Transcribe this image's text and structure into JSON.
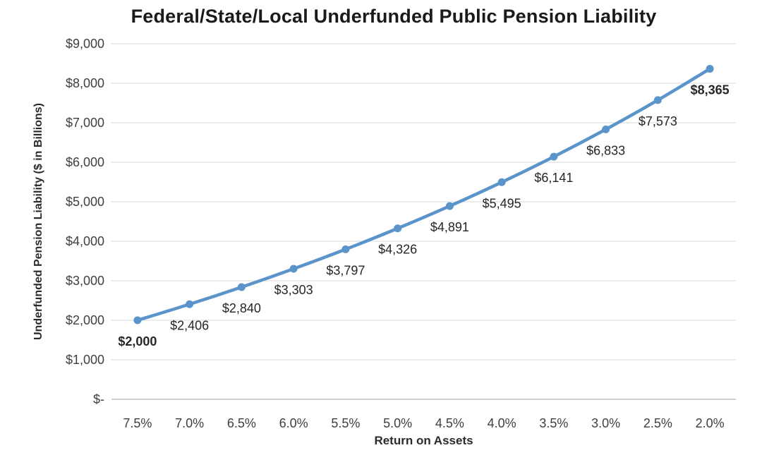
{
  "chart_data": {
    "type": "line",
    "title": "Federal/State/Local Underfunded Public Pension Liability",
    "xlabel": "Return on Assets",
    "ylabel": "Underfunded Pension Liability ($ in Billions)",
    "categories": [
      "7.5%",
      "7.0%",
      "6.5%",
      "6.0%",
      "5.5%",
      "5.0%",
      "4.5%",
      "4.0%",
      "3.5%",
      "3.0%",
      "2.5%",
      "2.0%"
    ],
    "values": [
      2000,
      2406,
      2840,
      3303,
      3797,
      4326,
      4891,
      5495,
      6141,
      6833,
      7573,
      8365
    ],
    "point_labels": [
      "$2,000",
      "$2,406",
      "$2,840",
      "$3,303",
      "$3,797",
      "$4,326",
      "$4,891",
      "$5,495",
      "$6,141",
      "$6,833",
      "$7,573",
      "$8,365"
    ],
    "point_label_bold": [
      true,
      false,
      false,
      false,
      false,
      false,
      false,
      false,
      false,
      false,
      false,
      true
    ],
    "y_ticks": [
      {
        "value": 9000,
        "label": "$9,000"
      },
      {
        "value": 8000,
        "label": "$8,000"
      },
      {
        "value": 7000,
        "label": "$7,000"
      },
      {
        "value": 6000,
        "label": "$6,000"
      },
      {
        "value": 5000,
        "label": "$5,000"
      },
      {
        "value": 4000,
        "label": "$4,000"
      },
      {
        "value": 3000,
        "label": "$3,000"
      },
      {
        "value": 2000,
        "label": "$2,000"
      },
      {
        "value": 1000,
        "label": "$1,000"
      },
      {
        "value": 0,
        "label": "$-"
      }
    ],
    "ylim": [
      0,
      9000
    ],
    "grid": true,
    "legend": "none",
    "colors": {
      "series": "#5B94CB",
      "grid": "#D9D9D9",
      "axis_line": "#BFBFBF",
      "tick_text": "#3f3f3f",
      "label_text": "#262626"
    }
  }
}
